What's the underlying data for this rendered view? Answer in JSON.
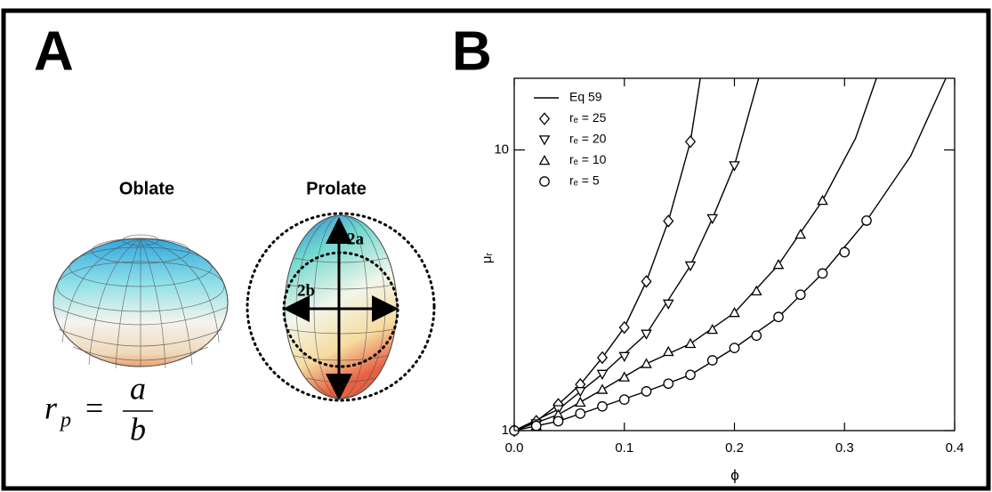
{
  "panel_a": {
    "label": "A",
    "shapes": [
      "Oblate",
      "Prolate"
    ],
    "axes": [
      "2a",
      "2b"
    ],
    "formula": {
      "lhs": "r",
      "lhs_sub": "p",
      "eq": "=",
      "numerator": "a",
      "denominator": "b"
    }
  },
  "panel_b": {
    "label": "B"
  },
  "chart_data": {
    "type": "scatter",
    "x_label": "ϕ",
    "y_label": "μᵣ",
    "xlim": [
      0,
      0.4
    ],
    "xticks": [
      {
        "value": 0,
        "label": "0.0"
      },
      0.1,
      0.2,
      0.3,
      0.4
    ],
    "ylim": [
      1,
      18
    ],
    "yticks": [
      1,
      10
    ],
    "log_y": true,
    "legend": "upper left",
    "series": [
      {
        "name": "Eq 59",
        "style": "line",
        "color": "#000000",
        "curves": [
          {
            "x": [
              0,
              0.02,
              0.04,
              0.06,
              0.08,
              0.1,
              0.12,
              0.14,
              0.16,
              0.169
            ],
            "values": [
              1,
              1.08,
              1.24,
              1.46,
              1.82,
              2.33,
              3.4,
              5.58,
              10.7,
              18
            ]
          },
          {
            "x": [
              0,
              0.04,
              0.08,
              0.12,
              0.16,
              0.18,
              0.2,
              0.222
            ],
            "values": [
              1,
              1.19,
              1.59,
              2.21,
              3.87,
              5.7,
              8.8,
              18
            ]
          },
          {
            "x": [
              0,
              0.04,
              0.08,
              0.12,
              0.16,
              0.2,
              0.24,
              0.28,
              0.31,
              0.329
            ],
            "values": [
              1,
              1.14,
              1.4,
              1.73,
              2.04,
              2.63,
              3.9,
              6.6,
              11,
              18
            ]
          },
          {
            "x": [
              0,
              0.04,
              0.08,
              0.12,
              0.16,
              0.2,
              0.24,
              0.28,
              0.32,
              0.36,
              0.392
            ],
            "values": [
              1,
              1.08,
              1.22,
              1.38,
              1.58,
              1.97,
              2.54,
              3.63,
              5.6,
              9.5,
              18
            ]
          }
        ]
      },
      {
        "name": "rₑ = 25",
        "style": "marker",
        "marker": "diamond",
        "color": "#000000",
        "x": [
          0,
          0.02,
          0.04,
          0.06,
          0.08,
          0.1,
          0.12,
          0.14,
          0.16
        ],
        "values": [
          1,
          1.08,
          1.24,
          1.46,
          1.82,
          2.33,
          3.4,
          5.58,
          10.7
        ]
      },
      {
        "name": "rₑ = 20",
        "style": "marker",
        "marker": "triangle-down",
        "color": "#000000",
        "x": [
          0.02,
          0.04,
          0.06,
          0.08,
          0.1,
          0.12,
          0.14,
          0.16,
          0.18,
          0.2
        ],
        "values": [
          1.06,
          1.19,
          1.38,
          1.59,
          1.84,
          2.21,
          2.83,
          3.87,
          5.7,
          8.8
        ]
      },
      {
        "name": "rₑ = 10",
        "style": "marker",
        "marker": "triangle-up",
        "color": "#000000",
        "x": [
          0.02,
          0.04,
          0.06,
          0.08,
          0.1,
          0.12,
          0.14,
          0.16,
          0.18,
          0.2,
          0.22,
          0.24,
          0.26,
          0.28
        ],
        "values": [
          1.04,
          1.14,
          1.26,
          1.4,
          1.55,
          1.73,
          1.91,
          2.04,
          2.29,
          2.63,
          3.14,
          3.9,
          5.0,
          6.6
        ]
      },
      {
        "name": "rₑ = 5",
        "style": "marker",
        "marker": "circle",
        "color": "#000000",
        "x": [
          0,
          0.02,
          0.04,
          0.06,
          0.08,
          0.1,
          0.12,
          0.14,
          0.16,
          0.18,
          0.2,
          0.22,
          0.24,
          0.26,
          0.28,
          0.3,
          0.32
        ],
        "values": [
          1,
          1.04,
          1.08,
          1.15,
          1.22,
          1.29,
          1.38,
          1.47,
          1.58,
          1.78,
          1.97,
          2.18,
          2.54,
          3.05,
          3.63,
          4.32,
          5.6
        ]
      }
    ]
  }
}
